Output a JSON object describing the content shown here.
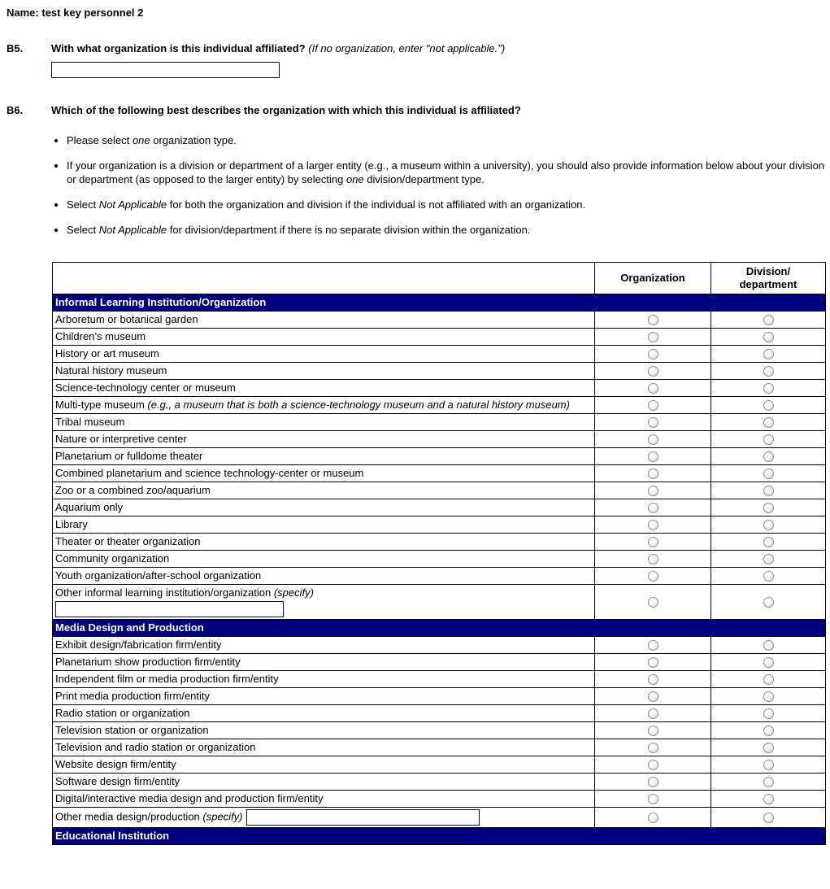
{
  "page": {
    "name_label": "Name:",
    "name_value": "test key personnel 2"
  },
  "b5": {
    "number": "B5.",
    "question": "With what organization is this individual affiliated?",
    "note": "(If no organization, enter \"not applicable.\")",
    "input_value": ""
  },
  "b6": {
    "number": "B6.",
    "question": "Which of the following best describes the organization with which this individual is affiliated?",
    "bullets": [
      {
        "parts": [
          {
            "text": "Please select "
          },
          {
            "text": "one",
            "italic": true
          },
          {
            "text": " organization type."
          }
        ]
      },
      {
        "parts": [
          {
            "text": "If your organization is a division or department of a larger entity (e.g., a museum within a university), you should also provide information below about your division or department (as opposed to the larger entity) by selecting "
          },
          {
            "text": "one",
            "italic": true
          },
          {
            "text": " division/department type."
          }
        ]
      },
      {
        "parts": [
          {
            "text": "Select "
          },
          {
            "text": "Not Applicable",
            "italic": true
          },
          {
            "text": " for both the organization and division if the individual is not affiliated with an organization."
          }
        ]
      },
      {
        "parts": [
          {
            "text": "Select "
          },
          {
            "text": "Not Applicable",
            "italic": true
          },
          {
            "text": " for division/department if there is no separate division within the organization."
          }
        ]
      }
    ]
  },
  "table": {
    "columns": [
      "",
      "Organization",
      "Division/\ndepartment"
    ],
    "radio_state": "unselected",
    "sections": [
      {
        "header": "Informal Learning Institution/Organization",
        "rows": [
          {
            "label": "Arboretum or botanical garden"
          },
          {
            "label": "Children’s museum"
          },
          {
            "label": "History or art museum"
          },
          {
            "label": "Natural history museum"
          },
          {
            "label": "Science-technology center or museum"
          },
          {
            "label": "Multi-type museum ",
            "italic": "(e.g., a museum that is both a science-technology museum and a natural history museum)"
          },
          {
            "label": "Tribal museum"
          },
          {
            "label": "Nature or interpretive center"
          },
          {
            "label": "Planetarium or fulldome theater"
          },
          {
            "label": "Combined planetarium and science technology-center or museum"
          },
          {
            "label": "Zoo or a combined zoo/aquarium"
          },
          {
            "label": "Aquarium only"
          },
          {
            "label": "Library"
          },
          {
            "label": "Theater or theater organization"
          },
          {
            "label": "Community organization"
          },
          {
            "label": "Youth organization/after-school organization"
          },
          {
            "label": "Other informal learning institution/organization ",
            "italic": "(specify)",
            "input": "below",
            "input_name": "other-informal-specify-input",
            "input_value": ""
          }
        ]
      },
      {
        "header": "Media Design and Production",
        "rows": [
          {
            "label": "Exhibit design/fabrication firm/entity"
          },
          {
            "label": "Planetarium show production firm/entity"
          },
          {
            "label": "Independent film or media production firm/entity"
          },
          {
            "label": "Print media production firm/entity"
          },
          {
            "label": "Radio station or organization"
          },
          {
            "label": "Television station or organization"
          },
          {
            "label": "Television and radio station or organization"
          },
          {
            "label": "Website design firm/entity"
          },
          {
            "label": "Software design firm/entity"
          },
          {
            "label": "Digital/interactive media design and production firm/entity"
          },
          {
            "label": "Other media design/production ",
            "italic": "(specify)",
            "input": "inline",
            "input_name": "other-media-specify-input",
            "input_value": ""
          }
        ]
      },
      {
        "header": "Educational Institution",
        "rows": []
      }
    ]
  },
  "colors": {
    "section_header_bg": "#000080",
    "section_header_text": "#ffffff",
    "table_border": "#000000",
    "input_border": "#000066",
    "text": "#000000",
    "background": "#ffffff"
  }
}
